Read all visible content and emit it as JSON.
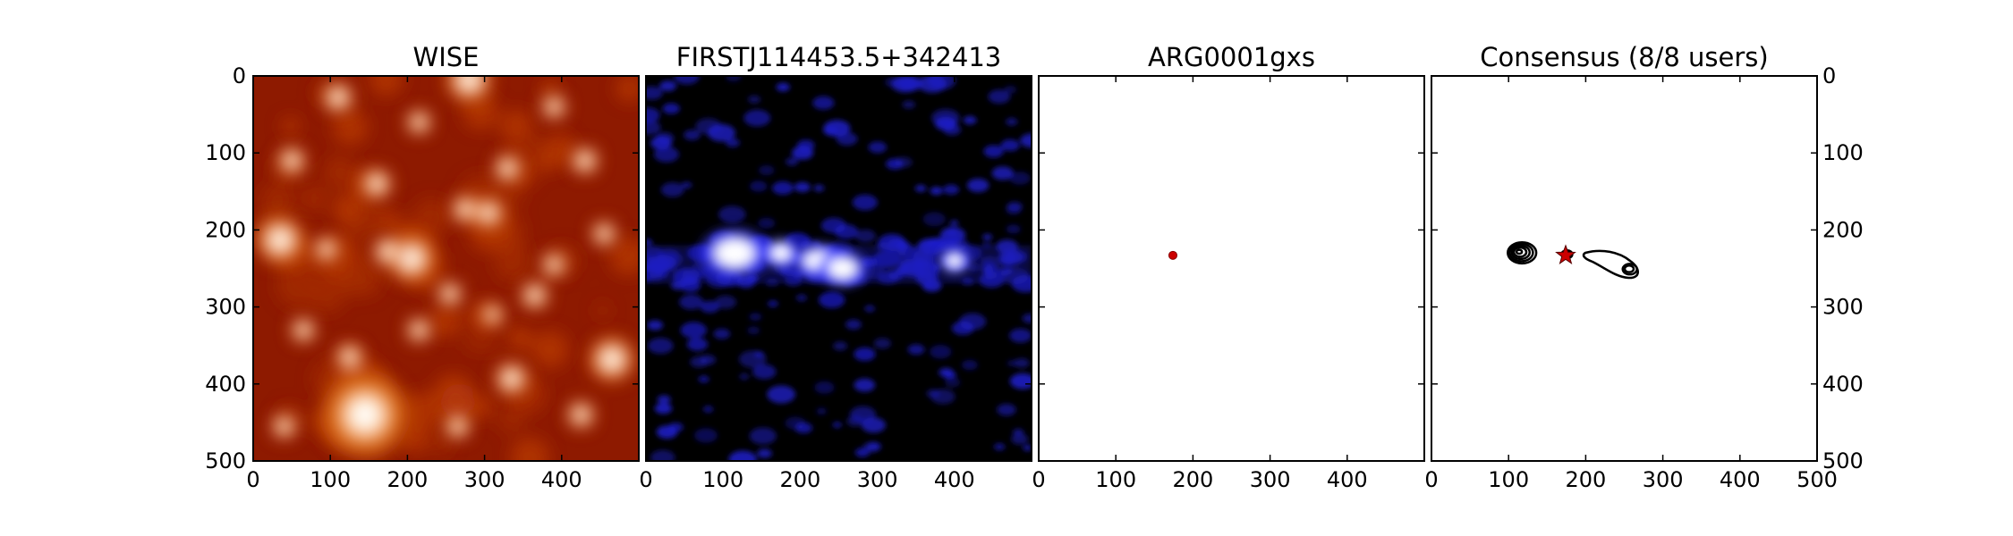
{
  "chart_data": [
    {
      "type": "heatmap",
      "title": "WISE",
      "colormap": "gist_heat",
      "xlim": [
        0,
        500
      ],
      "ylim": [
        500,
        0
      ],
      "x_ticks": [
        "0",
        "100",
        "200",
        "300",
        "400"
      ],
      "y_ticks": [
        "0",
        "100",
        "200",
        "300",
        "400",
        "500"
      ],
      "y_axis_side": "left",
      "sources": [
        {
          "x": 145,
          "y": 440,
          "r": 30
        },
        {
          "x": 205,
          "y": 237,
          "r": 17
        },
        {
          "x": 35,
          "y": 213,
          "r": 17
        },
        {
          "x": 465,
          "y": 368,
          "r": 16
        },
        {
          "x": 335,
          "y": 393,
          "r": 12
        },
        {
          "x": 280,
          "y": 5,
          "r": 16
        },
        {
          "x": 175,
          "y": 228,
          "r": 11
        },
        {
          "x": 305,
          "y": 178,
          "r": 11
        },
        {
          "x": 275,
          "y": 173,
          "r": 10
        },
        {
          "x": 110,
          "y": 28,
          "r": 11
        },
        {
          "x": 160,
          "y": 140,
          "r": 11
        },
        {
          "x": 330,
          "y": 120,
          "r": 10
        },
        {
          "x": 365,
          "y": 285,
          "r": 10
        },
        {
          "x": 255,
          "y": 283,
          "r": 9
        },
        {
          "x": 125,
          "y": 365,
          "r": 10
        },
        {
          "x": 50,
          "y": 110,
          "r": 10
        },
        {
          "x": 430,
          "y": 110,
          "r": 10
        },
        {
          "x": 455,
          "y": 205,
          "r": 9
        },
        {
          "x": 390,
          "y": 245,
          "r": 9
        },
        {
          "x": 65,
          "y": 330,
          "r": 9
        },
        {
          "x": 215,
          "y": 330,
          "r": 9
        },
        {
          "x": 425,
          "y": 440,
          "r": 10
        },
        {
          "x": 265,
          "y": 455,
          "r": 9
        },
        {
          "x": 40,
          "y": 455,
          "r": 9
        },
        {
          "x": 215,
          "y": 60,
          "r": 9
        },
        {
          "x": 390,
          "y": 40,
          "r": 9
        },
        {
          "x": 95,
          "y": 225,
          "r": 9
        },
        {
          "x": 310,
          "y": 310,
          "r": 8
        }
      ]
    },
    {
      "type": "heatmap",
      "title": "FIRSTJ114453.5+342413",
      "colormap": "blue",
      "xlim": [
        0,
        500
      ],
      "ylim": [
        500,
        0
      ],
      "x_ticks": [
        "0",
        "100",
        "200",
        "300",
        "400"
      ],
      "y_ticks": [],
      "y_axis_side": "left",
      "sources": [
        {
          "x": 115,
          "y": 230,
          "rx": 28,
          "ry": 20
        },
        {
          "x": 175,
          "y": 230,
          "rx": 14,
          "ry": 12
        },
        {
          "x": 225,
          "y": 240,
          "rx": 22,
          "ry": 14
        },
        {
          "x": 255,
          "y": 250,
          "rx": 20,
          "ry": 15
        },
        {
          "x": 400,
          "y": 240,
          "rx": 12,
          "ry": 10
        }
      ]
    },
    {
      "type": "scatter",
      "title": "ARG0001gxs",
      "xlim": [
        0,
        500
      ],
      "ylim": [
        500,
        0
      ],
      "x_ticks": [
        "0",
        "100",
        "200",
        "300",
        "400"
      ],
      "y_ticks": [],
      "y_axis_side": "left",
      "marker_color": "#cc0000",
      "points": [
        {
          "x": 174,
          "y": 233
        }
      ]
    },
    {
      "type": "scatter",
      "title": "Consensus (8/8 users)",
      "xlim": [
        0,
        500
      ],
      "ylim": [
        500,
        0
      ],
      "x_ticks": [
        "0",
        "100",
        "200",
        "300",
        "400",
        "500"
      ],
      "y_ticks": [
        "0",
        "100",
        "200",
        "300",
        "400",
        "500"
      ],
      "y_axis_side": "right",
      "marker": "star",
      "marker_color": "#cc0000",
      "points": [
        {
          "x": 174,
          "y": 233
        }
      ],
      "contours": [
        {
          "cx": 113,
          "cy": 228,
          "r": [
            6,
            14,
            20,
            26,
            32
          ]
        },
        {
          "cx": 174,
          "cy": 231,
          "r": [
            8,
            12
          ]
        },
        {
          "cx": 255,
          "cy": 250,
          "r": [
            10,
            16
          ]
        }
      ]
    }
  ]
}
